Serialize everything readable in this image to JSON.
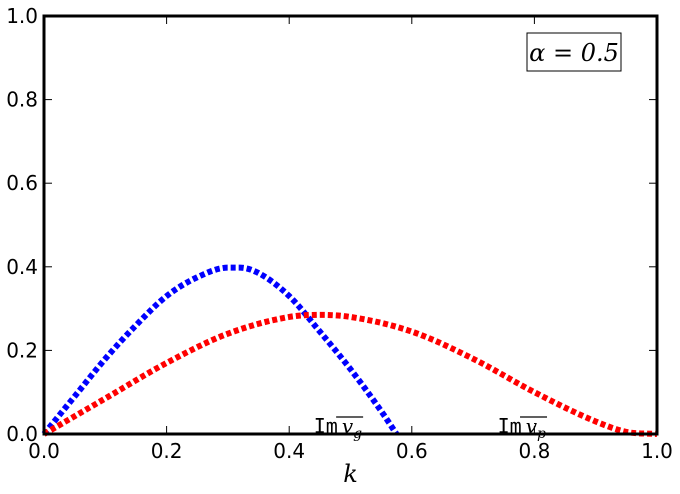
{
  "chart_data": {
    "type": "line",
    "title": "",
    "xlabel": "k",
    "ylabel": "",
    "xlim": [
      0.0,
      1.0
    ],
    "ylim": [
      0.0,
      1.0
    ],
    "x_ticks": [
      "0.0",
      "0.2",
      "0.4",
      "0.6",
      "0.8",
      "1.0"
    ],
    "y_ticks": [
      "0.0",
      "0.2",
      "0.4",
      "0.6",
      "0.8",
      "1.0"
    ],
    "grid": false,
    "legend": false,
    "parameter_box": {
      "text": "α = 0.5",
      "placement": "top-right"
    },
    "series": [
      {
        "color": "#0000ff",
        "style": "dotted",
        "points": [
          [
            0.0,
            0.0
          ],
          [
            0.05,
            0.09
          ],
          [
            0.1,
            0.18
          ],
          [
            0.15,
            0.26
          ],
          [
            0.2,
            0.33
          ],
          [
            0.25,
            0.375
          ],
          [
            0.3,
            0.398
          ],
          [
            0.32,
            0.398
          ],
          [
            0.35,
            0.385
          ],
          [
            0.4,
            0.33
          ],
          [
            0.45,
            0.245
          ],
          [
            0.5,
            0.155
          ],
          [
            0.55,
            0.055
          ],
          [
            0.575,
            0.0
          ]
        ],
        "annotation": {
          "mono": "Im",
          "text": "v",
          "subscript": "g",
          "overline": true,
          "x": 0.44,
          "y": 0.055
        }
      },
      {
        "color": "#ff0000",
        "style": "dotted",
        "points": [
          [
            0.0,
            0.0
          ],
          [
            0.1,
            0.085
          ],
          [
            0.2,
            0.17
          ],
          [
            0.3,
            0.24
          ],
          [
            0.4,
            0.28
          ],
          [
            0.45,
            0.285
          ],
          [
            0.5,
            0.28
          ],
          [
            0.6,
            0.245
          ],
          [
            0.7,
            0.18
          ],
          [
            0.8,
            0.1
          ],
          [
            0.9,
            0.03
          ],
          [
            0.95,
            0.005
          ],
          [
            1.0,
            0.0
          ]
        ],
        "annotation": {
          "mono": "Im",
          "text": "v",
          "subscript": "p",
          "overline": true,
          "x": 0.74,
          "y": 0.055
        }
      }
    ]
  }
}
